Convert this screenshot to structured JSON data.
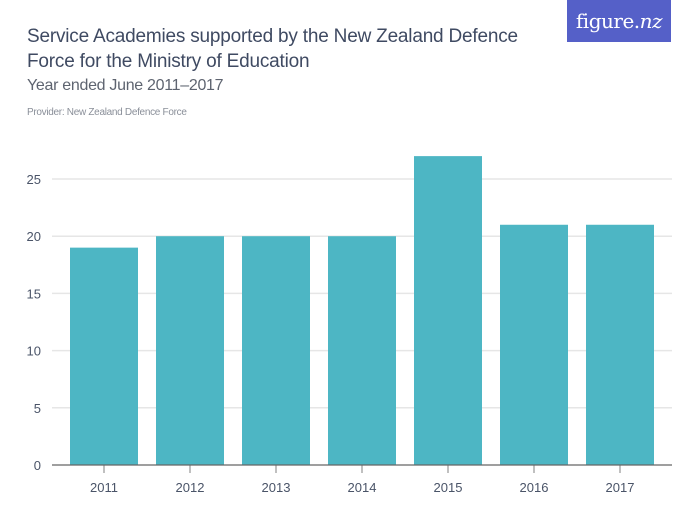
{
  "header": {
    "title": "Service Academies supported by the New Zealand Defence Force for the Ministry of Education",
    "subtitle": "Year ended June 2011–2017",
    "provider": "Provider: New Zealand Defence Force",
    "logo_text": "figure.",
    "logo_text_suffix": "nz",
    "logo_color": "#5560c8"
  },
  "colors": {
    "bar": "#4db6c4",
    "grid": "#e6e6e6",
    "axis": "#666666",
    "tick_label": "#4a5468"
  },
  "chart_data": {
    "type": "bar",
    "title": "Service Academies supported by the New Zealand Defence Force for the Ministry of Education",
    "subtitle": "Year ended June 2011–2017",
    "xlabel": "",
    "ylabel": "",
    "categories": [
      "2011",
      "2012",
      "2013",
      "2014",
      "2015",
      "2016",
      "2017"
    ],
    "values": [
      19,
      20,
      20,
      20,
      27,
      21,
      21
    ],
    "yticks": [
      0,
      5,
      10,
      15,
      20,
      25
    ],
    "ylim": [
      0,
      28
    ],
    "grid": true,
    "legend": null
  }
}
